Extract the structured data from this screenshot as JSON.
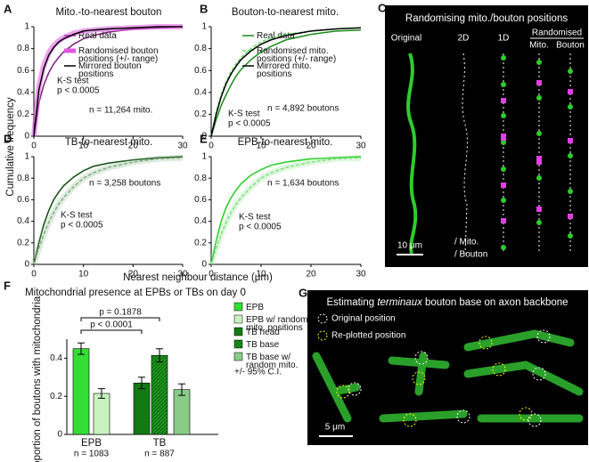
{
  "chart_data": [
    {
      "type": "line",
      "letter": "A",
      "title": "Mito.-to-nearest bouton",
      "x": [
        0,
        1,
        2,
        3,
        4,
        5,
        6,
        8,
        10,
        12,
        15,
        20,
        25,
        30
      ],
      "series": [
        {
          "name": "Real data",
          "color": "#7a1f7a",
          "style": "solid",
          "values": [
            0,
            0.3,
            0.47,
            0.58,
            0.66,
            0.72,
            0.77,
            0.84,
            0.89,
            0.92,
            0.95,
            0.98,
            0.99,
            1
          ]
        },
        {
          "name": "Randomised bouton positions (+/- range)",
          "color": "#e055e0",
          "style": "band",
          "values": [
            0,
            0.45,
            0.65,
            0.76,
            0.83,
            0.87,
            0.9,
            0.94,
            0.96,
            0.97,
            0.98,
            0.99,
            1,
            1
          ]
        },
        {
          "name": "Mirrored bouton positions",
          "color": "#000000",
          "style": "solid",
          "values": [
            0,
            0.42,
            0.62,
            0.74,
            0.81,
            0.86,
            0.89,
            0.93,
            0.96,
            0.97,
            0.98,
            0.99,
            1,
            1
          ]
        }
      ],
      "annotations": [
        "K-S test",
        "p < 0.0005",
        "n = 11,264 mito."
      ],
      "xlim": [
        0,
        30
      ],
      "xticks": [
        0,
        10,
        20,
        30
      ],
      "ylim": [
        0,
        1
      ],
      "yticks": [
        0,
        0.2,
        0.4,
        0.6,
        0.8,
        1
      ]
    },
    {
      "type": "line",
      "letter": "B",
      "title": "Bouton-to-nearest mito.",
      "x": [
        0,
        1,
        2,
        3,
        4,
        5,
        6,
        8,
        10,
        12,
        15,
        20,
        25,
        30
      ],
      "series": [
        {
          "name": "Real data",
          "color": "#1a8a1a",
          "style": "solid",
          "values": [
            0,
            0.15,
            0.28,
            0.38,
            0.47,
            0.55,
            0.61,
            0.7,
            0.77,
            0.82,
            0.88,
            0.93,
            0.96,
            0.97
          ]
        },
        {
          "name": "Randomised mito. positions (+/- range)",
          "color": "#66dd66",
          "style": "dashed",
          "values": [
            0,
            0.22,
            0.38,
            0.5,
            0.59,
            0.66,
            0.72,
            0.8,
            0.86,
            0.9,
            0.93,
            0.96,
            0.98,
            0.99
          ]
        },
        {
          "name": "Mirrored mito. positions",
          "color": "#000000",
          "style": "solid",
          "values": [
            0,
            0.2,
            0.36,
            0.48,
            0.57,
            0.64,
            0.7,
            0.78,
            0.84,
            0.88,
            0.92,
            0.96,
            0.98,
            0.99
          ]
        }
      ],
      "annotations": [
        "K-S test",
        "p < 0.0005",
        "n = 4,892 boutons"
      ],
      "xlim": [
        0,
        30
      ],
      "xticks": [
        0,
        10,
        20,
        30
      ],
      "ylim": [
        0,
        1
      ],
      "yticks": [
        0,
        0.2,
        0.4,
        0.6,
        0.8,
        1
      ]
    },
    {
      "type": "line",
      "letter": "D",
      "title": "TB-to-nearest mito.",
      "x": [
        0,
        1,
        2,
        3,
        4,
        5,
        6,
        8,
        10,
        12,
        15,
        20,
        25,
        30
      ],
      "series": [
        {
          "color": "#0f4d0f",
          "style": "solid",
          "values": [
            0,
            0.2,
            0.37,
            0.5,
            0.6,
            0.67,
            0.73,
            0.81,
            0.87,
            0.91,
            0.94,
            0.97,
            0.99,
            1
          ]
        },
        {
          "color": "#7fae7f",
          "style": "dashed",
          "values": [
            0,
            0.15,
            0.28,
            0.39,
            0.48,
            0.56,
            0.62,
            0.72,
            0.8,
            0.85,
            0.9,
            0.95,
            0.98,
            0.99
          ]
        }
      ],
      "annotations": [
        "K-S test",
        "p < 0.0005",
        "n = 3,258 boutons"
      ],
      "xlim": [
        0,
        30
      ],
      "xticks": [
        0,
        10,
        20,
        30
      ],
      "ylim": [
        0,
        1
      ],
      "yticks": [
        0,
        0.2,
        0.4,
        0.6,
        0.8,
        1
      ]
    },
    {
      "type": "line",
      "letter": "E",
      "title": "EPB-to-nearest mito.",
      "x": [
        0,
        1,
        2,
        3,
        4,
        5,
        6,
        8,
        10,
        12,
        15,
        20,
        25,
        30
      ],
      "series": [
        {
          "color": "#22cc22",
          "style": "solid",
          "values": [
            0,
            0.22,
            0.4,
            0.53,
            0.62,
            0.69,
            0.75,
            0.83,
            0.88,
            0.92,
            0.95,
            0.98,
            0.99,
            1
          ]
        },
        {
          "color": "#7fe07f",
          "style": "dashed",
          "values": [
            0,
            0.15,
            0.28,
            0.39,
            0.48,
            0.56,
            0.62,
            0.72,
            0.8,
            0.85,
            0.9,
            0.95,
            0.98,
            0.99
          ]
        }
      ],
      "annotations": [
        "K-S test",
        "p < 0.0005",
        "n = 1,634 boutons"
      ],
      "xlim": [
        0,
        30
      ],
      "xticks": [
        0,
        10,
        20,
        30
      ],
      "ylim": [
        0,
        1
      ],
      "yticks": [
        0,
        0.2,
        0.4,
        0.6,
        0.8,
        1
      ]
    },
    {
      "type": "bar",
      "letter": "F",
      "title": "Mitochondrial presence at EPBs or TBs on day 0",
      "ylabel": "Proportion of boutons with mitochondria",
      "categories": [
        "EPB",
        "EPB w/ random mito. positions",
        "TB head",
        "TB base",
        "TB base w/ random mito."
      ],
      "values": [
        0.45,
        0.215,
        0.27,
        0.415,
        0.235
      ],
      "errors": [
        0.03,
        0.025,
        0.03,
        0.035,
        0.03
      ],
      "colors": [
        "#33dd33",
        "#c8f2c0",
        "#127a12",
        "#22aa22",
        "#88cc88"
      ],
      "groups": [
        {
          "label": "EPB",
          "n": "n = 1083"
        },
        {
          "label": "TB",
          "n": "n = 887"
        }
      ],
      "comparisons": [
        "p = 0.1878",
        "p < 0.0001"
      ],
      "note": "+/- 95% C.I.",
      "ylim": [
        0,
        0.5
      ],
      "yticks": [
        0,
        0.2,
        0.4
      ]
    }
  ],
  "shared": {
    "ylabel": "Cumulative frequency",
    "xlabel": "Nearest neighbour distance (μm)"
  },
  "panel_c": {
    "letter": "C",
    "title": "Randomising mito./bouton positions",
    "columns": [
      "Original",
      "2D",
      "1D",
      "Mito.",
      "Bouton"
    ],
    "group": "Randomised",
    "scale": "10 μm",
    "legend": [
      "/ Mito.",
      "/ Bouton"
    ]
  },
  "panel_g": {
    "letter": "G",
    "title_pre": "Estimating ",
    "title_em": "terminaux",
    "title_post": " bouton base on axon backbone",
    "legend": [
      "Original position",
      "Re-plotted position"
    ],
    "scale": "5 μm"
  }
}
